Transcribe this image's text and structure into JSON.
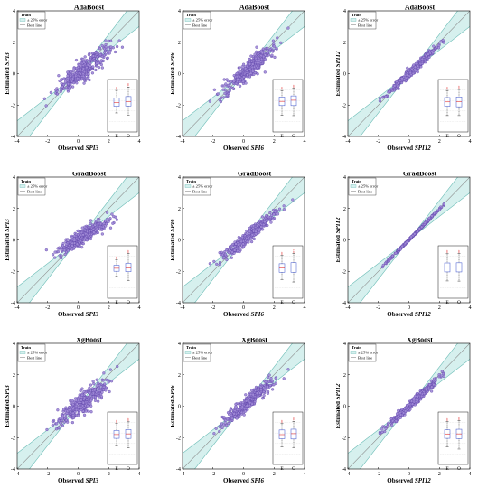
{
  "colors": {
    "point_fill": "#a08ad6",
    "point_stroke": "#5a3fa8",
    "band_fill": "#d6f0ee",
    "band_line": "#6bbcb6",
    "best_line": "#8c8c8c",
    "box_blue": "#4a5fd0",
    "box_red": "#e02020"
  },
  "chart_data": [
    {
      "type": "scatter",
      "title": "AdaBoost",
      "xlabel": "Observed",
      "ylabel": "Estimated",
      "index": "SPI3",
      "xlim": [
        -4,
        4
      ],
      "ylim": [
        -4,
        4
      ],
      "ticks": [
        -4,
        -2,
        0,
        2,
        4
      ],
      "legend": {
        "title": "Train",
        "band": "± 25% error",
        "line": "Best line"
      },
      "box_labels": [
        "E",
        "O"
      ],
      "point_count": 350,
      "x_range": [
        -2.2,
        3.6
      ],
      "slope": 0.78,
      "intercept": 0.0,
      "noise": 0.32
    },
    {
      "type": "scatter",
      "title": "AdaBoost",
      "xlabel": "Observed",
      "ylabel": "Estimated",
      "index": "SPI6",
      "xlim": [
        -4,
        4
      ],
      "ylim": [
        -4,
        4
      ],
      "ticks": [
        -4,
        -2,
        0,
        2,
        4
      ],
      "legend": {
        "title": "Train",
        "band": "± 25% error",
        "line": "Best line"
      },
      "box_labels": [
        "E",
        "O"
      ],
      "point_count": 350,
      "x_range": [
        -2.2,
        3.2
      ],
      "slope": 0.82,
      "intercept": 0.0,
      "noise": 0.3
    },
    {
      "type": "scatter",
      "title": "AdaBoost",
      "xlabel": "Observed",
      "ylabel": "Estimated",
      "index": "SPI12",
      "xlim": [
        -4,
        4
      ],
      "ylim": [
        -4,
        4
      ],
      "ticks": [
        -4,
        -2,
        0,
        2,
        4
      ],
      "legend": {
        "title": "Train",
        "band": "± 25% error",
        "line": "Best line"
      },
      "box_labels": [
        "E",
        "O"
      ],
      "point_count": 350,
      "x_range": [
        -1.9,
        2.3
      ],
      "slope": 0.92,
      "intercept": 0.0,
      "noise": 0.13
    },
    {
      "type": "scatter",
      "title": "GradBoost",
      "xlabel": "Observed",
      "ylabel": "Estimated",
      "index": "SPI3",
      "xlim": [
        -4,
        4
      ],
      "ylim": [
        -4,
        4
      ],
      "ticks": [
        -4,
        -2,
        0,
        2,
        4
      ],
      "legend": {
        "title": "Train",
        "band": "± 25% error",
        "line": "Best line"
      },
      "box_labels": [
        "E",
        "O"
      ],
      "point_count": 350,
      "x_range": [
        -2.2,
        3.6
      ],
      "slope": 0.6,
      "intercept": 0.05,
      "noise": 0.26
    },
    {
      "type": "scatter",
      "title": "GradBoost",
      "xlabel": "Observed",
      "ylabel": "Estimated",
      "index": "SPI6",
      "xlim": [
        -4,
        4
      ],
      "ylim": [
        -4,
        4
      ],
      "ticks": [
        -4,
        -2,
        0,
        2,
        4
      ],
      "legend": {
        "title": "Train",
        "band": "± 25% error",
        "line": "Best line"
      },
      "box_labels": [
        "E",
        "O"
      ],
      "point_count": 350,
      "x_range": [
        -2.2,
        3.3
      ],
      "slope": 0.82,
      "intercept": 0.0,
      "noise": 0.2
    },
    {
      "type": "scatter",
      "title": "GradBoost",
      "xlabel": "Observed",
      "ylabel": "Estimated",
      "index": "SPI12",
      "xlim": [
        -4,
        4
      ],
      "ylim": [
        -4,
        4
      ],
      "ticks": [
        -4,
        -2,
        0,
        2,
        4
      ],
      "legend": {
        "title": "Train",
        "band": "± 25% error",
        "line": "Best line"
      },
      "box_labels": [
        "E",
        "O"
      ],
      "point_count": 350,
      "x_range": [
        -2.0,
        2.3
      ],
      "slope": 0.98,
      "intercept": 0.0,
      "noise": 0.03
    },
    {
      "type": "scatter",
      "title": "XgBoost",
      "xlabel": "Observed",
      "ylabel": "Estimated",
      "index": "SPI3",
      "xlim": [
        -4,
        4
      ],
      "ylim": [
        -4,
        4
      ],
      "ticks": [
        -4,
        -2,
        0,
        2,
        4
      ],
      "legend": {
        "title": "Train",
        "band": "± 25% error",
        "line": "Best line"
      },
      "box_labels": [
        "E",
        "O"
      ],
      "point_count": 350,
      "x_range": [
        -2.2,
        3.6
      ],
      "slope": 0.75,
      "intercept": 0.0,
      "noise": 0.33
    },
    {
      "type": "scatter",
      "title": "XgBoost",
      "xlabel": "Observed",
      "ylabel": "Estimated",
      "index": "SPI6",
      "xlim": [
        -4,
        4
      ],
      "ylim": [
        -4,
        4
      ],
      "ticks": [
        -4,
        -2,
        0,
        2,
        4
      ],
      "legend": {
        "title": "Train",
        "band": "± 25% error",
        "line": "Best line"
      },
      "box_labels": [
        "E",
        "O"
      ],
      "point_count": 350,
      "x_range": [
        -2.2,
        3.2
      ],
      "slope": 0.82,
      "intercept": 0.0,
      "noise": 0.24
    },
    {
      "type": "scatter",
      "title": "XgBoost",
      "xlabel": "Observed",
      "ylabel": "Estimated",
      "index": "SPI12",
      "xlim": [
        -4,
        4
      ],
      "ylim": [
        -4,
        4
      ],
      "ticks": [
        -4,
        -2,
        0,
        2,
        4
      ],
      "legend": {
        "title": "Train",
        "band": "± 25% error",
        "line": "Best line"
      },
      "box_labels": [
        "E",
        "O"
      ],
      "point_count": 350,
      "x_range": [
        -1.9,
        2.3
      ],
      "slope": 0.9,
      "intercept": 0.0,
      "noise": 0.12
    }
  ]
}
